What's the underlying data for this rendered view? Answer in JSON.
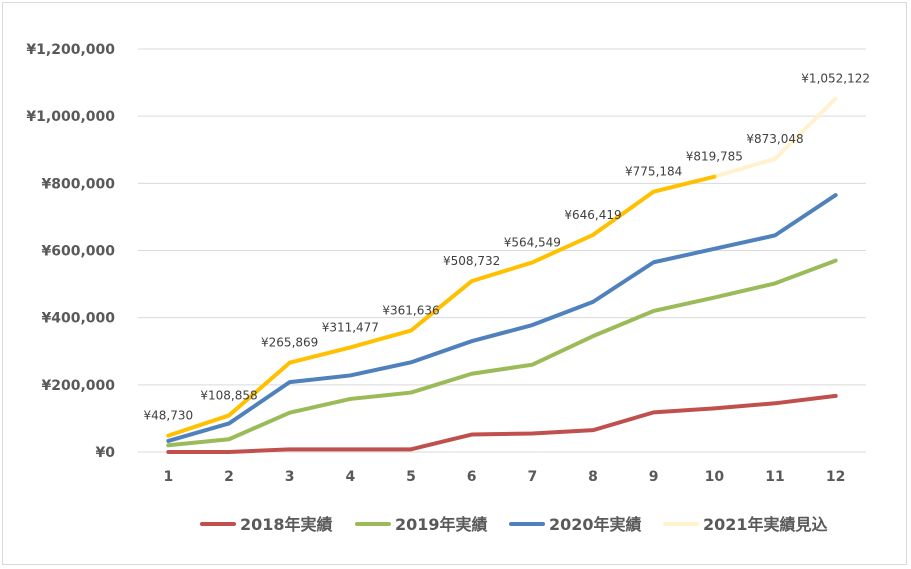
{
  "chart_data": {
    "type": "line",
    "x": [
      1,
      2,
      3,
      4,
      5,
      6,
      7,
      8,
      9,
      10,
      11,
      12
    ],
    "ylim": [
      0,
      1200000
    ],
    "ytick_values": [
      0,
      200000,
      400000,
      600000,
      800000,
      1000000,
      1200000
    ],
    "ytick_labels": [
      "¥0",
      "¥200,000",
      "¥400,000",
      "¥600,000",
      "¥800,000",
      "¥1,000,000",
      "¥1,200,000"
    ],
    "grid": true,
    "legend_position": "bottom",
    "series": [
      {
        "name": "2018年実績",
        "color": "#c0504d",
        "values": [
          0,
          0,
          8000,
          8000,
          8000,
          52000,
          55000,
          65000,
          118000,
          130000,
          145000,
          167000
        ]
      },
      {
        "name": "2019年実績",
        "color": "#9bbb59",
        "values": [
          20000,
          38000,
          117000,
          158000,
          177000,
          233000,
          260000,
          345000,
          420000,
          460000,
          502000,
          570000
        ]
      },
      {
        "name": "2020年実績",
        "color": "#4f81bd",
        "values": [
          33000,
          85000,
          208000,
          228000,
          267000,
          330000,
          378000,
          447000,
          565000,
          605000,
          645000,
          765000
        ]
      },
      {
        "name": "2021年実績見込",
        "color": "#ffc000",
        "forecast_color": "#fff2cc",
        "actual_until_x": 10,
        "values": [
          48730,
          108858,
          265869,
          311477,
          361636,
          508732,
          564549,
          646419,
          775184,
          819785,
          873048,
          1052122
        ],
        "data_labels": [
          "¥48,730",
          "¥108,858",
          "¥265,869",
          "¥311,477",
          "¥361,636",
          "¥508,732",
          "¥564,549",
          "¥646,419",
          "¥775,184",
          "¥819,785",
          "¥873,048",
          "¥1,052,122"
        ]
      }
    ]
  }
}
